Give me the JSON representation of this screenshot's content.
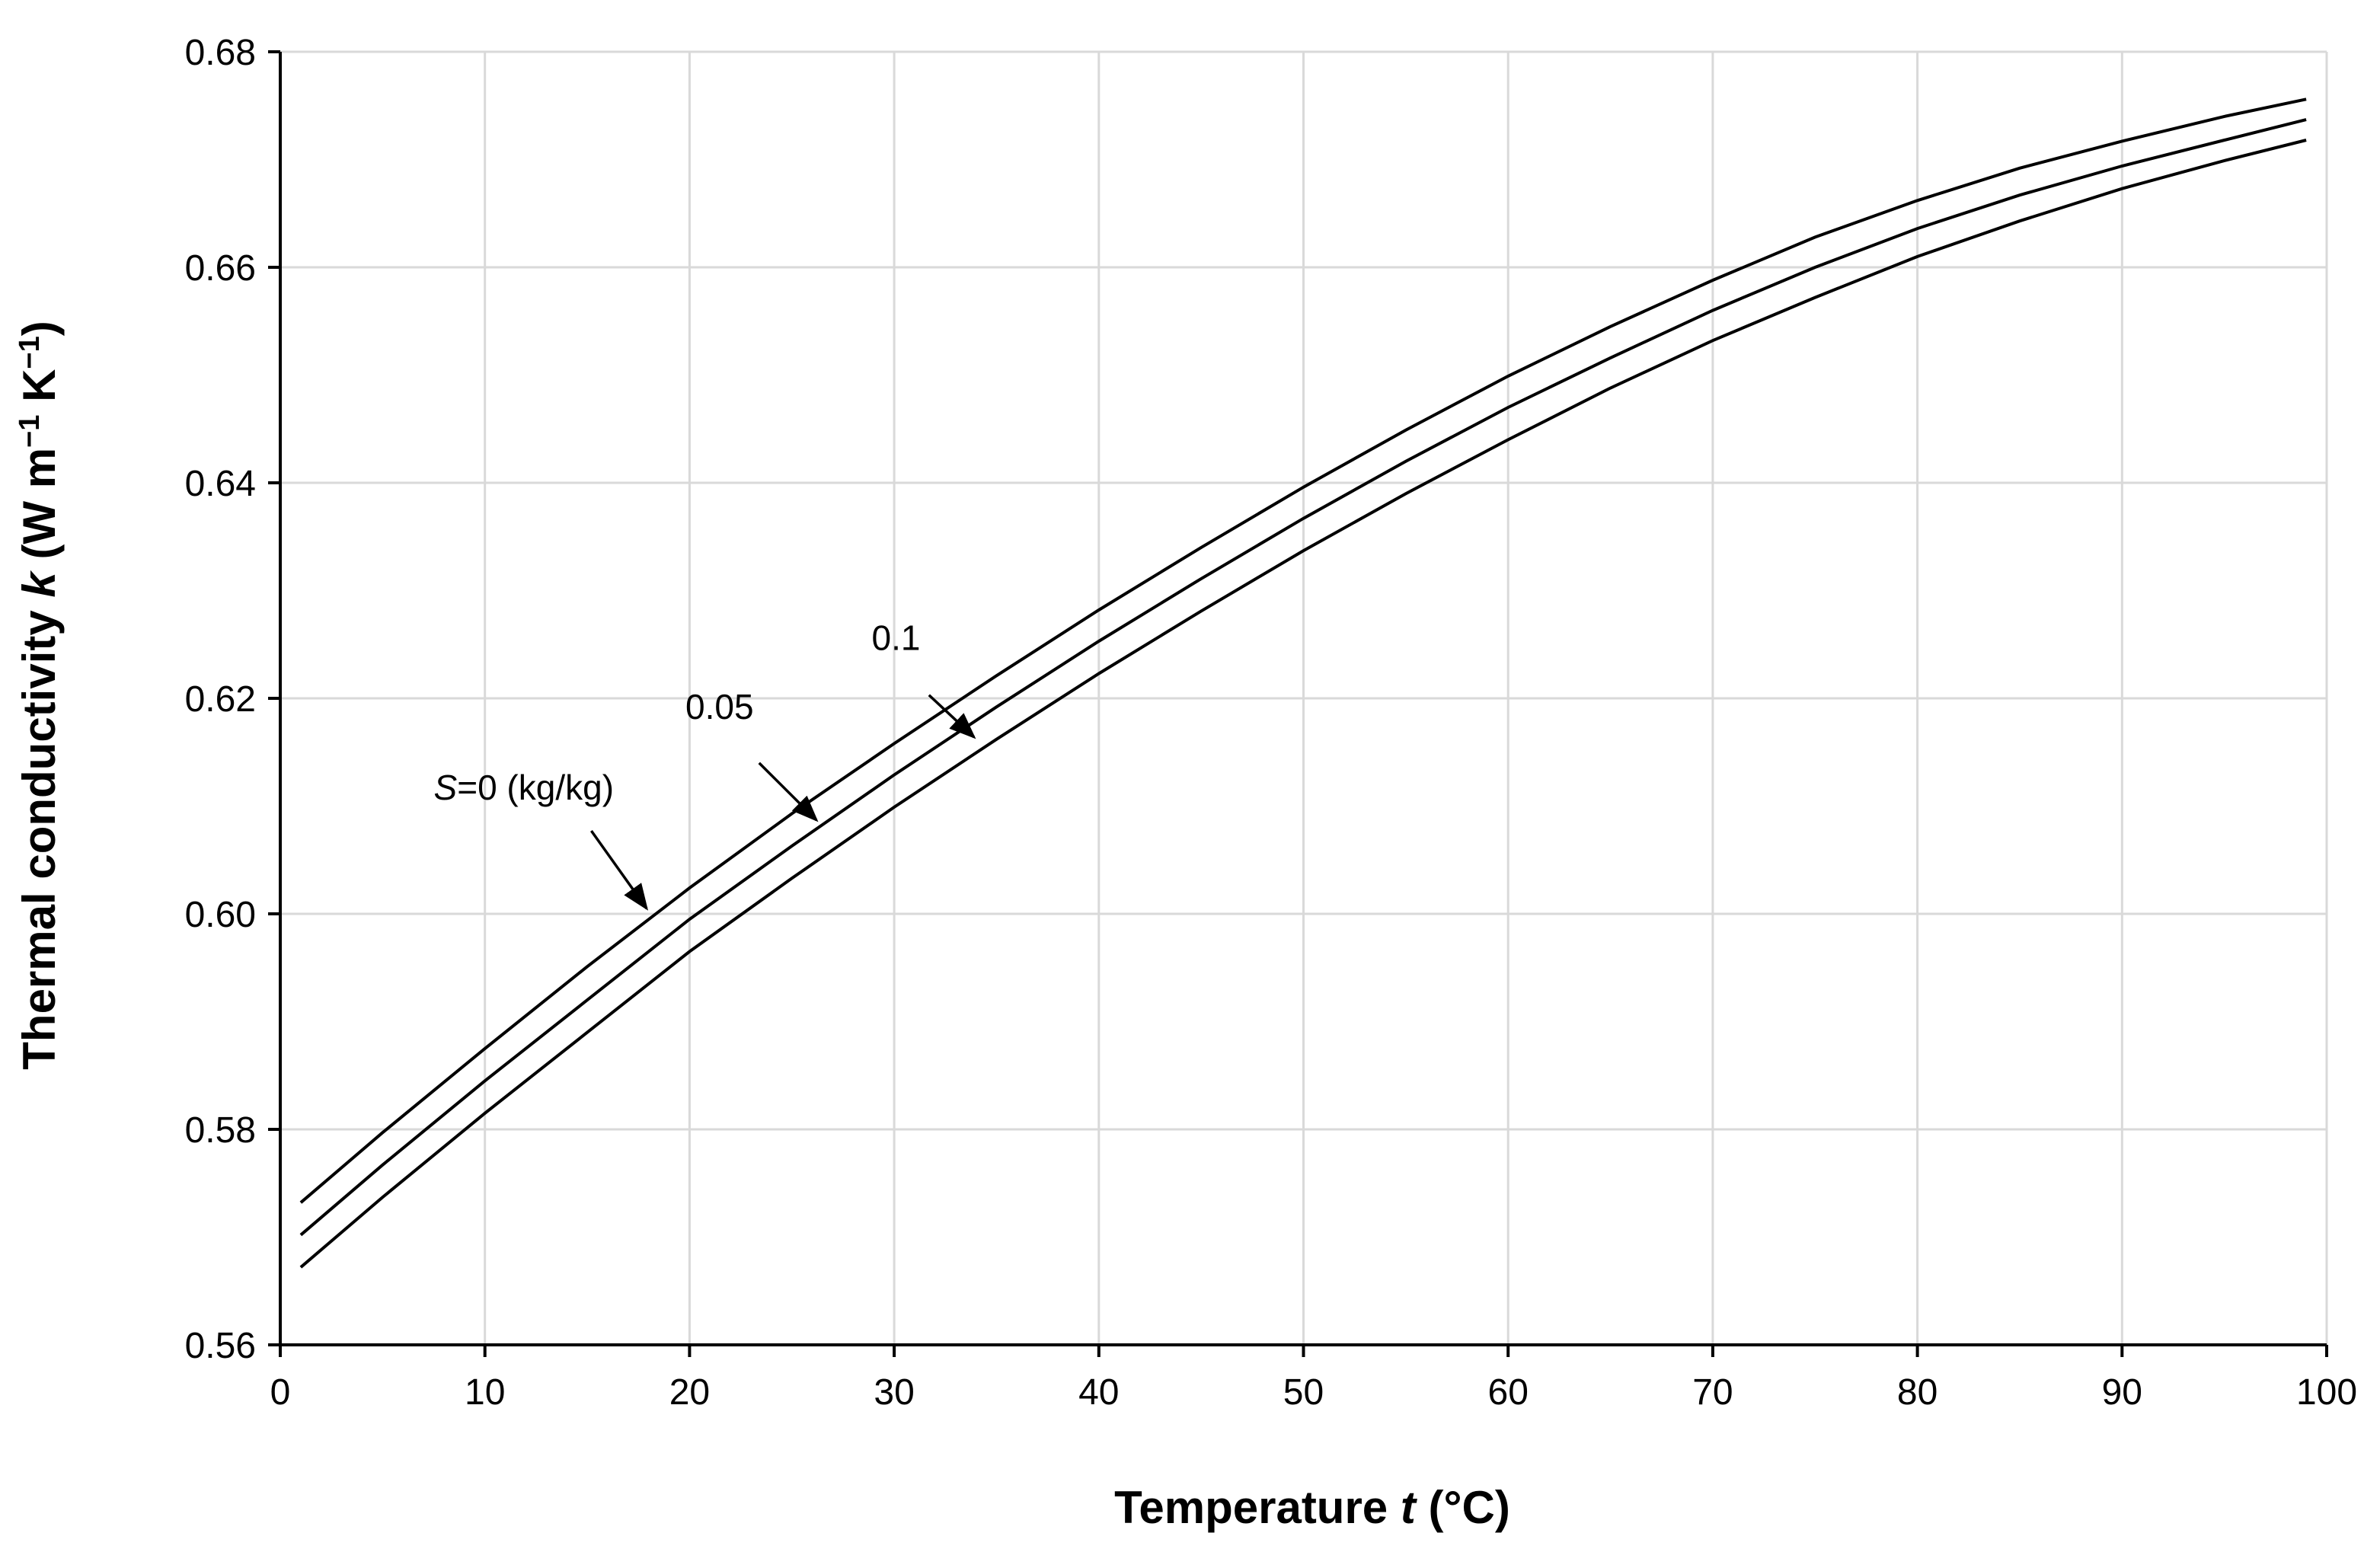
{
  "chart_data": {
    "type": "line",
    "title": "",
    "xlabel": {
      "main": "Temperature ",
      "symbol": "t",
      "unit": " (°C)"
    },
    "ylabel": {
      "main": "Thermal conductivity ",
      "symbol": "k",
      "unit": " (W m",
      "exp1": "−1",
      "mid": " K",
      "exp2": "−1",
      "close": ")"
    },
    "xlim": [
      0,
      100
    ],
    "ylim": [
      0.56,
      0.68
    ],
    "xticks": [
      0,
      10,
      20,
      30,
      40,
      50,
      60,
      70,
      80,
      90,
      100
    ],
    "yticks": [
      0.56,
      0.58,
      0.6,
      0.62,
      0.64,
      0.66,
      0.68
    ],
    "ytick_labels": [
      "0.56",
      "0.58",
      "0.60",
      "0.62",
      "0.64",
      "0.66",
      "0.68"
    ],
    "grid": true,
    "x": [
      1,
      5,
      10,
      15,
      20,
      25,
      30,
      35,
      40,
      45,
      50,
      55,
      60,
      65,
      70,
      75,
      80,
      85,
      90,
      95,
      99
    ],
    "series": [
      {
        "name": "S=0",
        "values": [
          0.5732,
          0.5797,
          0.5875,
          0.5951,
          0.6024,
          0.6093,
          0.6158,
          0.6221,
          0.6282,
          0.634,
          0.6396,
          0.6449,
          0.6499,
          0.6545,
          0.6588,
          0.6628,
          0.6662,
          0.6692,
          0.6717,
          0.674,
          0.6756
        ]
      },
      {
        "name": "0.05",
        "values": [
          0.5702,
          0.5767,
          0.5845,
          0.592,
          0.5995,
          0.6063,
          0.6129,
          0.6192,
          0.6253,
          0.6311,
          0.6367,
          0.642,
          0.647,
          0.6516,
          0.656,
          0.66,
          0.6636,
          0.6667,
          0.6694,
          0.6718,
          0.6737
        ]
      },
      {
        "name": "0.1",
        "values": [
          0.5672,
          0.5737,
          0.5815,
          0.589,
          0.5965,
          0.6033,
          0.6099,
          0.6162,
          0.6223,
          0.6281,
          0.6337,
          0.639,
          0.644,
          0.6488,
          0.6532,
          0.6572,
          0.661,
          0.6643,
          0.6673,
          0.6699,
          0.6718
        ]
      }
    ],
    "annotations": [
      {
        "name": "s0",
        "italic": "S",
        "text": "=0 (kg/kg)",
        "label_x": 7.5,
        "label_y": 0.6106,
        "arrow_from": [
          15.2,
          0.6077
        ],
        "arrow_to": [
          17.9,
          0.6005
        ]
      },
      {
        "name": "s005",
        "italic": "",
        "text": "0.05",
        "label_x": 19.8,
        "label_y": 0.6181,
        "arrow_from": [
          23.4,
          0.614
        ],
        "arrow_to": [
          26.2,
          0.6087
        ]
      },
      {
        "name": "s01",
        "italic": "",
        "text": "0.1",
        "label_x": 28.9,
        "label_y": 0.6245,
        "arrow_from": [
          31.7,
          0.6203
        ],
        "arrow_to": [
          33.9,
          0.6164
        ]
      }
    ]
  }
}
